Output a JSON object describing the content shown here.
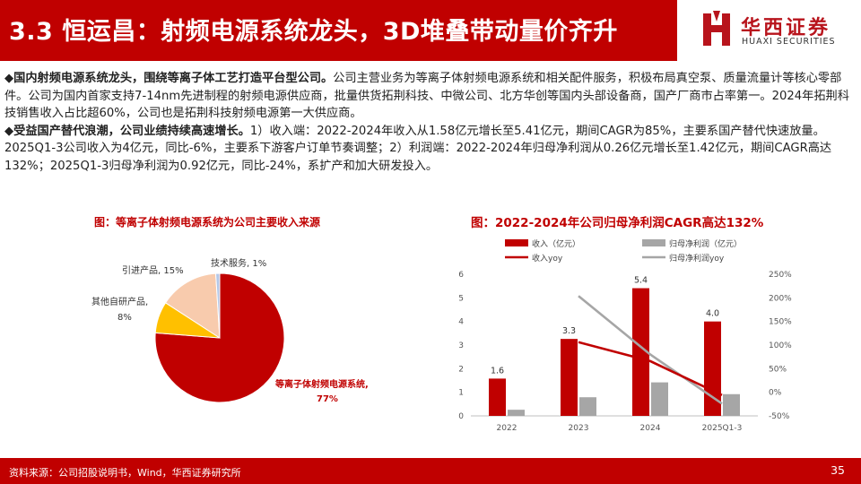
{
  "header": {
    "title": "3.3 恒运昌：射频电源系统龙头，3D堆叠带动量价齐升",
    "logo_cn": "华西证券",
    "logo_en": "HUAXI SECURITIES"
  },
  "paragraphs": [
    {
      "lead": "◆国内射频电源系统龙头，围绕等离子体工艺打造平台型公司。",
      "body": "公司主营业务为等离子体射频电源系统和相关配件服务，积极布局真空泵、质量流量计等核心零部件。公司为国内首家支持7-14nm先进制程的射频电源供应商，批量供货拓荆科技、中微公司、北方华创等国内头部设备商，国产厂商市占率第一。2024年拓荆科技销售收入占比超60%，公司也是拓荆科技射频电源第一大供应商。"
    },
    {
      "lead": "◆受益国产替代浪潮，公司业绩持续高速增长。",
      "body": "1）收入端：2022-2024年收入从1.58亿元增长至5.41亿元，期间CAGR为85%，主要系国产替代快速放量。2025Q1-3公司收入为4亿元，同比-6%，主要系下游客户订单节奏调整；2）利润端：2022-2024年归母净利润从0.26亿元增长至1.42亿元，期间CAGR高达132%；2025Q1-3归母净利润为0.92亿元，同比-24%，系扩产和加大研发投入。"
    }
  ],
  "chart_data": [
    {
      "type": "pie",
      "title": "图：等离子体射频电源系统为公司主要收入来源",
      "slices": [
        {
          "label": "等离子体射频电源系统,",
          "pct_label": "77%",
          "value": 77,
          "color": "#c00000"
        },
        {
          "label": "其他自研产品,",
          "pct_label": "8%",
          "value": 8,
          "color": "#ffc000"
        },
        {
          "label": "引进产品, 15%",
          "value": 15,
          "color": "#f8cbad"
        },
        {
          "label": "技术服务, 1%",
          "value": 1,
          "color": "#b4c7e7"
        }
      ]
    },
    {
      "type": "bar",
      "title": "图：2022-2024年公司归母净利润CAGR高达132%",
      "categories": [
        "2022",
        "2023",
        "2024",
        "2025Q1-3"
      ],
      "series": [
        {
          "name": "收入（亿元）",
          "kind": "bar",
          "axis": "left",
          "color": "#c00000",
          "values": [
            1.58,
            3.26,
            5.41,
            4.0
          ],
          "labels": [
            "1.6",
            "3.3",
            "5.4",
            "4.0"
          ]
        },
        {
          "name": "归母净利润（亿元）",
          "kind": "bar",
          "axis": "left",
          "color": "#a6a6a6",
          "values": [
            0.26,
            0.79,
            1.42,
            0.92
          ]
        },
        {
          "name": "收入yoy",
          "kind": "line",
          "axis": "right",
          "color": "#c00000",
          "values": [
            null,
            106,
            66,
            -6
          ]
        },
        {
          "name": "归母净利润yoy",
          "kind": "line",
          "axis": "right",
          "color": "#a6a6a6",
          "values": [
            null,
            204,
            80,
            -24
          ]
        }
      ],
      "y_left": {
        "min": 0,
        "max": 6,
        "ticks": [
          "0",
          "1",
          "2",
          "3",
          "4",
          "5",
          "6"
        ]
      },
      "y_right": {
        "min": -50,
        "max": 250,
        "ticks": [
          "-50%",
          "0%",
          "50%",
          "100%",
          "150%",
          "200%",
          "250%"
        ]
      },
      "legend": "top"
    }
  ],
  "footer": {
    "source": "资料来源：公司招股说明书，Wind，华西证券研究所",
    "page": "35"
  }
}
